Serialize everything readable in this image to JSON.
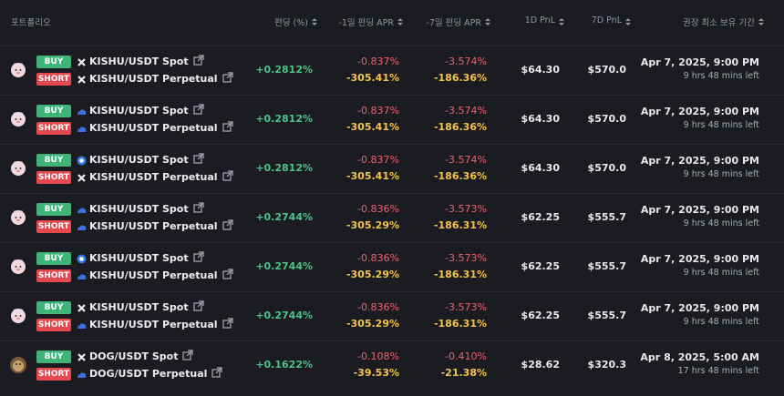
{
  "header": {
    "columns": [
      "포트폴리오",
      "펀딩 (%)",
      "-1일 펀딩 APR",
      "-7일 펀딩 APR",
      "1D PnL",
      "7D PnL",
      "권장 최소 보유 기간"
    ]
  },
  "table": {
    "rows": [
      {
        "buy_label": "BUY",
        "buy_pair": "KISHU/USDT Spot",
        "short_label": "SHORT",
        "short_pair": "KISHU/USDT Perpetual",
        "funding": "+0.2812%",
        "apr_1d": [
          "-0.837%",
          "-305.41%"
        ],
        "apr_7d": [
          "-3.574%",
          "-186.36%"
        ],
        "pnl_1d": "$64.30",
        "pnl_7d": "$570.0",
        "hold_until": "Apr 7, 2025, 9:00 PM",
        "time_left": "9 hrs 48 mins left"
      },
      {
        "buy_label": "BUY",
        "buy_pair": "KISHU/USDT Spot",
        "short_label": "SHORT",
        "short_pair": "KISHU/USDT Perpetual",
        "funding": "+0.2812%",
        "apr_1d": [
          "-0.837%",
          "-305.41%"
        ],
        "apr_7d": [
          "-3.574%",
          "-186.36%"
        ],
        "pnl_1d": "$64.30",
        "pnl_7d": "$570.0",
        "hold_until": "Apr 7, 2025, 9:00 PM",
        "time_left": "9 hrs 48 mins left"
      },
      {
        "buy_label": "BUY",
        "buy_pair": "KISHU/USDT Spot",
        "short_label": "SHORT",
        "short_pair": "KISHU/USDT Perpetual",
        "funding": "+0.2812%",
        "apr_1d": [
          "-0.837%",
          "-305.41%"
        ],
        "apr_7d": [
          "-3.574%",
          "-186.36%"
        ],
        "pnl_1d": "$64.30",
        "pnl_7d": "$570.0",
        "hold_until": "Apr 7, 2025, 9:00 PM",
        "time_left": "9 hrs 48 mins left"
      },
      {
        "buy_label": "BUY",
        "buy_pair": "KISHU/USDT Spot",
        "short_label": "SHORT",
        "short_pair": "KISHU/USDT Perpetual",
        "funding": "+0.2744%",
        "apr_1d": [
          "-0.836%",
          "-305.29%"
        ],
        "apr_7d": [
          "-3.573%",
          "-186.31%"
        ],
        "pnl_1d": "$62.25",
        "pnl_7d": "$555.7",
        "hold_until": "Apr 7, 2025, 9:00 PM",
        "time_left": "9 hrs 48 mins left"
      },
      {
        "buy_label": "BUY",
        "buy_pair": "KISHU/USDT Spot",
        "short_label": "SHORT",
        "short_pair": "KISHU/USDT Perpetual",
        "funding": "+0.2744%",
        "apr_1d": [
          "-0.836%",
          "-305.29%"
        ],
        "apr_7d": [
          "-3.573%",
          "-186.31%"
        ],
        "pnl_1d": "$62.25",
        "pnl_7d": "$555.7",
        "hold_until": "Apr 7, 2025, 9:00 PM",
        "time_left": "9 hrs 48 mins left"
      },
      {
        "buy_label": "BUY",
        "buy_pair": "KISHU/USDT Spot",
        "short_label": "SHORT",
        "short_pair": "KISHU/USDT Perpetual",
        "funding": "+0.2744%",
        "apr_1d": [
          "-0.836%",
          "-305.29%"
        ],
        "apr_7d": [
          "-3.573%",
          "-186.31%"
        ],
        "pnl_1d": "$62.25",
        "pnl_7d": "$555.7",
        "hold_until": "Apr 7, 2025, 9:00 PM",
        "time_left": "9 hrs 48 mins left"
      },
      {
        "buy_label": "BUY",
        "buy_pair": "DOG/USDT Spot",
        "short_label": "SHORT",
        "short_pair": "DOG/USDT Perpetual",
        "funding": "+0.1622%",
        "apr_1d": [
          "-0.108%",
          "-39.53%"
        ],
        "apr_7d": [
          "-0.410%",
          "-21.38%"
        ],
        "pnl_1d": "$28.62",
        "pnl_7d": "$320.3",
        "hold_until": "Apr 8, 2025, 5:00 AM",
        "time_left": "17 hrs 48 mins left"
      }
    ]
  }
}
